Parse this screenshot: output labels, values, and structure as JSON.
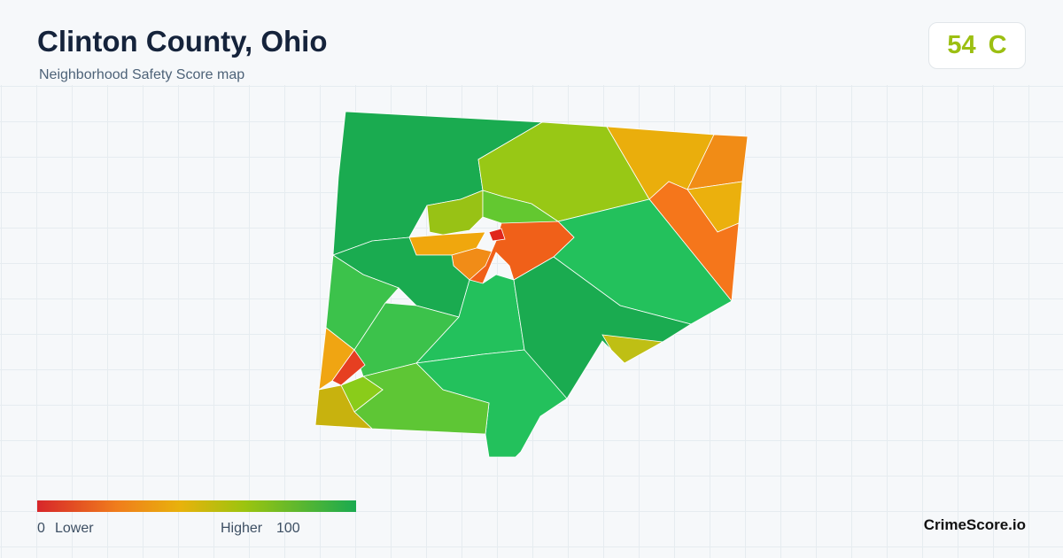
{
  "header": {
    "title": "Clinton County, Ohio",
    "subtitle": "Neighborhood Safety Score map"
  },
  "score": {
    "value": 54,
    "grade": "C"
  },
  "legend": {
    "min": 0,
    "min_label": "Lower",
    "max_label": "Higher",
    "max": 100
  },
  "brand": "CrimeScore.io"
}
